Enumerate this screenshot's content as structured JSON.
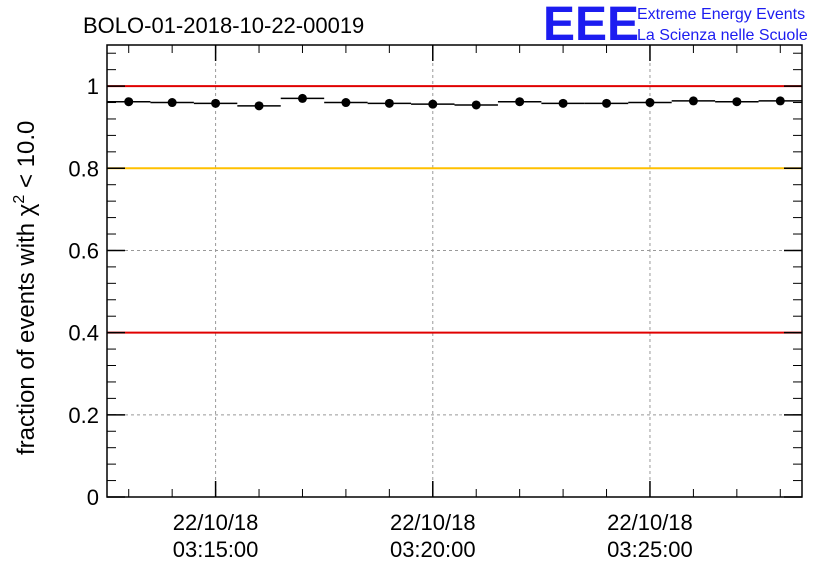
{
  "chart_data": {
    "type": "scatter",
    "title": "BOLO-01-2018-10-22-00019",
    "ylabel_prefix": "fraction of events with ",
    "ylabel_chi": "χ",
    "ylabel_sup": "2",
    "ylabel_suffix": " < 10.0",
    "xlabel": "",
    "ylim": [
      0,
      1.1
    ],
    "y_ticks": [
      "0",
      "0.2",
      "0.4",
      "0.6",
      "0.8",
      "1"
    ],
    "y_tick_values": [
      0,
      0.2,
      0.4,
      0.6,
      0.8,
      1.0
    ],
    "x_range_minutes": [
      12.5,
      28.5
    ],
    "x_ticks": [
      {
        "minute": 15,
        "date": "22/10/18",
        "time": "03:15:00"
      },
      {
        "minute": 20,
        "date": "22/10/18",
        "time": "03:20:00"
      },
      {
        "minute": 25,
        "date": "22/10/18",
        "time": "03:25:00"
      }
    ],
    "grid": true,
    "reference_lines": [
      {
        "y": 1.0,
        "color": "#e00000"
      },
      {
        "y": 0.8,
        "color": "#ffc000"
      },
      {
        "y": 0.4,
        "color": "#e00000"
      }
    ],
    "series": [
      {
        "x_minutes": [
          13.0,
          14.0,
          15.0,
          16.0,
          17.0,
          18.0,
          19.0,
          20.0,
          21.0,
          22.0,
          23.0,
          24.0,
          25.0,
          26.0,
          27.0,
          28.0
        ],
        "values": [
          0.962,
          0.96,
          0.958,
          0.952,
          0.97,
          0.96,
          0.958,
          0.956,
          0.954,
          0.962,
          0.958,
          0.958,
          0.96,
          0.964,
          0.962,
          0.964
        ]
      }
    ],
    "point_color": "#000000"
  },
  "logo": {
    "mark": "EEE",
    "line1": "Extreme Energy Events",
    "line2": "La Scienza nelle Scuole",
    "color": "#1c1cf0"
  }
}
